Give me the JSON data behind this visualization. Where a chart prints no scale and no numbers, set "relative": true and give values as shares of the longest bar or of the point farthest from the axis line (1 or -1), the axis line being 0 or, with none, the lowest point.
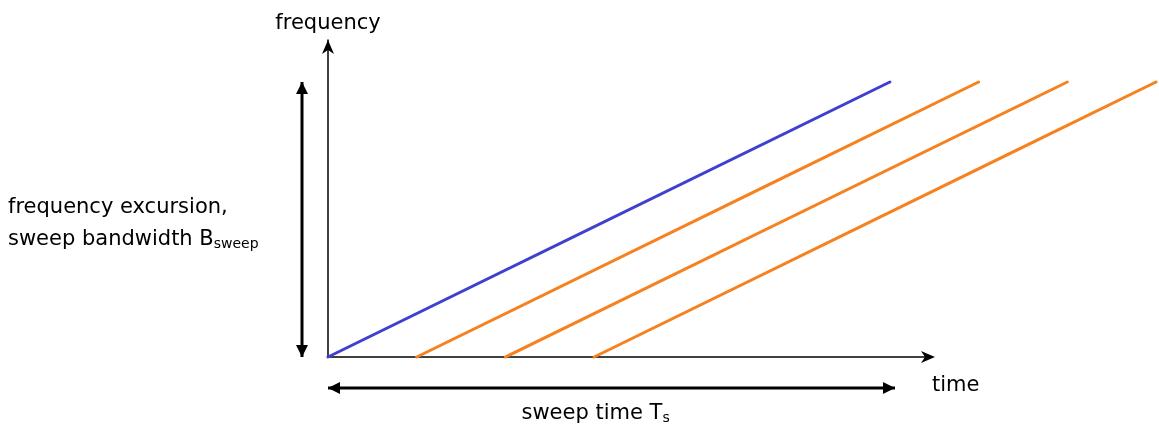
{
  "chart_data": {
    "type": "line",
    "relative": true,
    "xlabel": "time",
    "ylabel": "frequency",
    "annotations": [
      "frequency excursion,\nsweep bandwidth B$_{sweep}$",
      "sweep time T$_{s}$"
    ],
    "marker": "none",
    "line_style": "solid",
    "categories": [
      null,
      null,
      null,
      null,
      null,
      null,
      null,
      null,
      null,
      null,
      null,
      null,
      null,
      null,
      null,
      null,
      null,
      null,
      null,
      null,
      null,
      null,
      null,
      null,
      null,
      null,
      null,
      null,
      null
    ],
    "series": [
      {
        "color": "#4040d0",
        "values": [
          0,
          null,
          null,
          null,
          null,
          null,
          null,
          null,
          null,
          null,
          null,
          null,
          null,
          null,
          null,
          null,
          null,
          null,
          null,
          1,
          null,
          null,
          null,
          null,
          null,
          null,
          null,
          null,
          null
        ]
      },
      {
        "color": "#f5811f",
        "values": [
          null,
          null,
          null,
          0,
          null,
          null,
          null,
          null,
          null,
          null,
          null,
          null,
          null,
          null,
          null,
          null,
          null,
          null,
          null,
          null,
          null,
          null,
          1,
          null,
          null,
          null,
          null,
          null,
          null
        ]
      },
      {
        "color": "#f5811f",
        "values": [
          null,
          null,
          null,
          null,
          null,
          null,
          0,
          null,
          null,
          null,
          null,
          null,
          null,
          null,
          null,
          null,
          null,
          null,
          null,
          null,
          null,
          null,
          null,
          null,
          null,
          1,
          null,
          null,
          null
        ]
      },
      {
        "color": "#f5811f",
        "values": [
          null,
          null,
          null,
          null,
          null,
          null,
          null,
          null,
          null,
          0,
          null,
          null,
          null,
          null,
          null,
          null,
          null,
          null,
          null,
          null,
          null,
          null,
          null,
          null,
          null,
          null,
          null,
          null,
          1
        ]
      }
    ]
  }
}
